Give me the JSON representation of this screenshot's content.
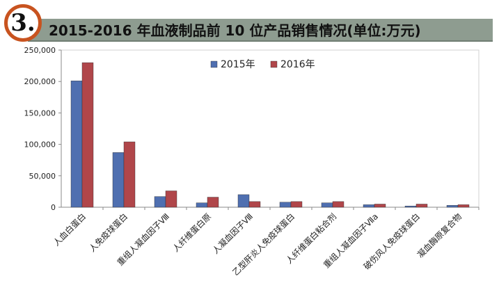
{
  "badge": {
    "text": "3."
  },
  "chart_data": {
    "type": "bar",
    "title": "2015-2016 年血液制品前 10 位产品销售情况(单位:万元)",
    "categories": [
      "人血白蛋白",
      "人免疫球蛋白",
      "重组人凝血因子Ⅷ",
      "人纤维蛋白原",
      "人凝血因子Ⅷ",
      "乙型肝炎人免疫球蛋白",
      "人纤维蛋白粘合剂",
      "重组人凝血因子Ⅶa",
      "破伤风人免疫球蛋白",
      "凝血酶原复合物"
    ],
    "series": [
      {
        "name": "2015年",
        "color": "#4f6fb0",
        "values": [
          201000,
          87000,
          17000,
          7000,
          20000,
          8000,
          7000,
          4000,
          2000,
          3000
        ]
      },
      {
        "name": "2016年",
        "color": "#b0464a",
        "values": [
          230000,
          104000,
          26000,
          16000,
          9000,
          9000,
          9000,
          5000,
          5000,
          4000
        ]
      }
    ],
    "yticks": [
      "0",
      "50,000",
      "100,000",
      "150,000",
      "200,000",
      "250,000"
    ],
    "ylim": [
      0,
      250000
    ],
    "grid": false,
    "legend": "top-center"
  }
}
